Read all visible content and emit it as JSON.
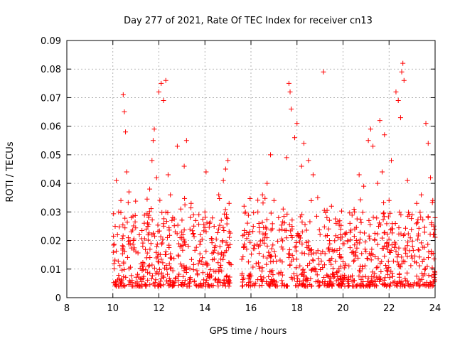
{
  "chart_data": {
    "type": "scatter",
    "title": "Day 277 of 2021, Rate Of TEC Index for receiver cn13",
    "xlabel": "GPS time / hours",
    "ylabel": "ROTI / TECUs",
    "xlim": [
      8,
      24
    ],
    "ylim": [
      0,
      0.09
    ],
    "x_ticks": [
      "8",
      "10",
      "12",
      "14",
      "16",
      "18",
      "20",
      "22",
      "24"
    ],
    "y_ticks": [
      "0",
      "0.01",
      "0.02",
      "0.03",
      "0.04",
      "0.05",
      "0.06",
      "0.07",
      "0.08",
      "0.09"
    ],
    "grid": true,
    "legend": "none",
    "marker": "+",
    "series": [
      {
        "name": "ROTI",
        "color": "#ff0000",
        "points": [
          [
            10.05,
            0.012
          ],
          [
            10.1,
            0.025
          ],
          [
            10.15,
            0.041
          ],
          [
            10.2,
            0.022
          ],
          [
            10.25,
            0.03
          ],
          [
            10.35,
            0.034
          ],
          [
            10.45,
            0.071
          ],
          [
            10.5,
            0.065
          ],
          [
            10.55,
            0.058
          ],
          [
            10.6,
            0.044
          ],
          [
            10.7,
            0.037
          ],
          [
            10.8,
            0.028
          ],
          [
            10.9,
            0.02
          ],
          [
            11.0,
            0.016
          ],
          [
            11.15,
            0.022
          ],
          [
            11.3,
            0.018
          ],
          [
            11.45,
            0.024
          ],
          [
            11.6,
            0.038
          ],
          [
            11.7,
            0.048
          ],
          [
            11.75,
            0.055
          ],
          [
            11.8,
            0.059
          ],
          [
            11.9,
            0.042
          ],
          [
            12.0,
            0.072
          ],
          [
            12.1,
            0.075
          ],
          [
            12.2,
            0.069
          ],
          [
            12.3,
            0.076
          ],
          [
            12.4,
            0.043
          ],
          [
            12.5,
            0.036
          ],
          [
            12.6,
            0.028
          ],
          [
            12.8,
            0.053
          ],
          [
            12.95,
            0.031
          ],
          [
            13.1,
            0.046
          ],
          [
            13.2,
            0.055
          ],
          [
            13.4,
            0.033
          ],
          [
            13.6,
            0.027
          ],
          [
            13.8,
            0.022
          ],
          [
            14.0,
            0.03
          ],
          [
            14.05,
            0.044
          ],
          [
            14.2,
            0.026
          ],
          [
            14.4,
            0.025
          ],
          [
            14.6,
            0.036
          ],
          [
            14.8,
            0.041
          ],
          [
            14.9,
            0.045
          ],
          [
            15.0,
            0.048
          ],
          [
            15.05,
            0.033
          ],
          [
            15.7,
            0.032
          ],
          [
            15.9,
            0.022
          ],
          [
            16.1,
            0.025
          ],
          [
            16.3,
            0.03
          ],
          [
            16.5,
            0.036
          ],
          [
            16.7,
            0.04
          ],
          [
            16.85,
            0.05
          ],
          [
            17.0,
            0.034
          ],
          [
            17.2,
            0.028
          ],
          [
            17.4,
            0.031
          ],
          [
            17.55,
            0.049
          ],
          [
            17.65,
            0.075
          ],
          [
            17.7,
            0.072
          ],
          [
            17.75,
            0.066
          ],
          [
            17.9,
            0.056
          ],
          [
            18.0,
            0.061
          ],
          [
            18.2,
            0.046
          ],
          [
            18.3,
            0.054
          ],
          [
            18.5,
            0.048
          ],
          [
            18.7,
            0.043
          ],
          [
            18.9,
            0.035
          ],
          [
            19.15,
            0.079
          ],
          [
            19.3,
            0.028
          ],
          [
            19.5,
            0.032
          ],
          [
            19.7,
            0.026
          ],
          [
            19.9,
            0.024
          ],
          [
            20.1,
            0.022
          ],
          [
            20.3,
            0.026
          ],
          [
            20.5,
            0.03
          ],
          [
            20.7,
            0.043
          ],
          [
            20.9,
            0.039
          ],
          [
            21.1,
            0.055
          ],
          [
            21.2,
            0.059
          ],
          [
            21.3,
            0.053
          ],
          [
            21.5,
            0.04
          ],
          [
            21.6,
            0.062
          ],
          [
            21.7,
            0.044
          ],
          [
            21.8,
            0.057
          ],
          [
            22.0,
            0.034
          ],
          [
            22.1,
            0.048
          ],
          [
            22.3,
            0.072
          ],
          [
            22.4,
            0.069
          ],
          [
            22.5,
            0.063
          ],
          [
            22.55,
            0.079
          ],
          [
            22.6,
            0.082
          ],
          [
            22.65,
            0.076
          ],
          [
            22.8,
            0.041
          ],
          [
            23.0,
            0.029
          ],
          [
            23.2,
            0.033
          ],
          [
            23.4,
            0.036
          ],
          [
            23.6,
            0.061
          ],
          [
            23.7,
            0.054
          ],
          [
            23.8,
            0.042
          ],
          [
            23.9,
            0.034
          ],
          [
            24.0,
            0.028
          ]
        ]
      }
    ]
  }
}
